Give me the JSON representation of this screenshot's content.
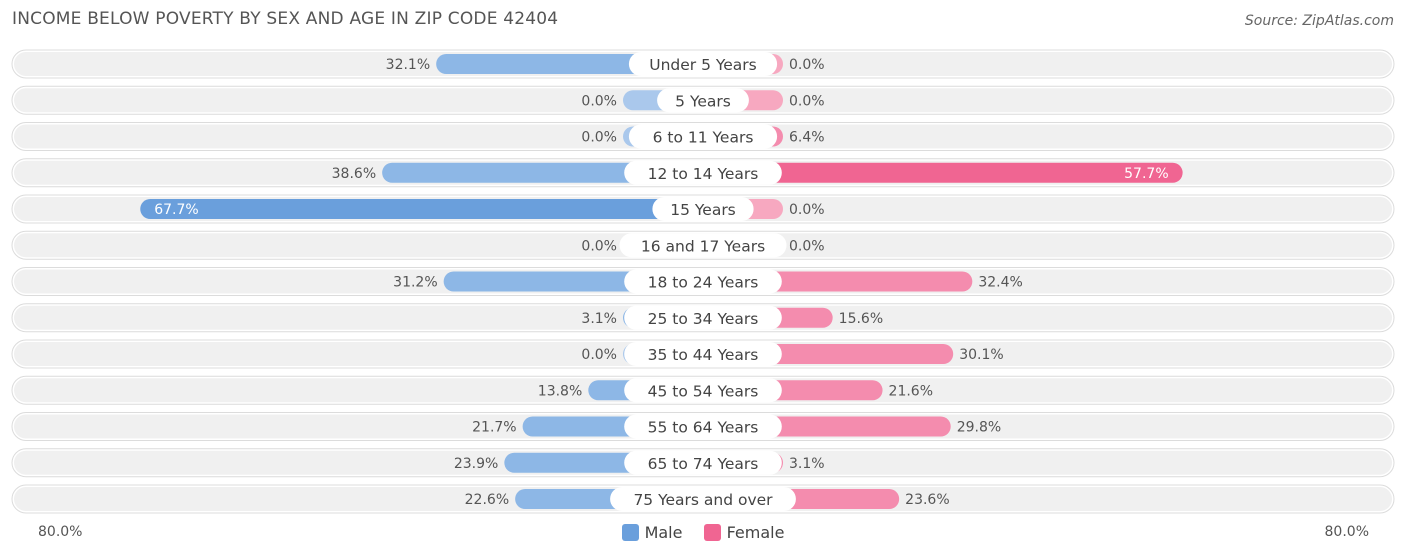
{
  "title": "INCOME BELOW POVERTY BY SEX AND AGE IN ZIP CODE 42404",
  "source": "Source: ZipAtlas.com",
  "axis": {
    "left_label": "80.0%",
    "right_label": "80.0%"
  },
  "legend": {
    "male_label": "Male",
    "female_label": "Female"
  },
  "colors": {
    "male": "#6a9fdc",
    "male_light": "#aac8ec",
    "female": "#f06592",
    "female_light": "#f7a8c0",
    "row_bg": "#f0f0f0"
  },
  "chart_data": {
    "type": "bar",
    "orientation": "horizontal-diverging",
    "categories": [
      "Under 5 Years",
      "5 Years",
      "6 to 11 Years",
      "12 to 14 Years",
      "15 Years",
      "16 and 17 Years",
      "18 to 24 Years",
      "25 to 34 Years",
      "35 to 44 Years",
      "45 to 54 Years",
      "55 to 64 Years",
      "65 to 74 Years",
      "75 Years and over"
    ],
    "series": [
      {
        "name": "Male",
        "values": [
          32.1,
          0.0,
          0.0,
          38.6,
          67.7,
          0.0,
          31.2,
          3.1,
          0.0,
          13.8,
          21.7,
          23.9,
          22.6
        ],
        "labels": [
          "32.1%",
          "0.0%",
          "0.0%",
          "38.6%",
          "67.7%",
          "0.0%",
          "31.2%",
          "3.1%",
          "0.0%",
          "13.8%",
          "21.7%",
          "23.9%",
          "22.6%"
        ]
      },
      {
        "name": "Female",
        "values": [
          0.0,
          0.0,
          6.4,
          57.7,
          0.0,
          0.0,
          32.4,
          15.6,
          30.1,
          21.6,
          29.8,
          3.1,
          23.6
        ],
        "labels": [
          "0.0%",
          "0.0%",
          "6.4%",
          "57.7%",
          "0.0%",
          "0.0%",
          "32.4%",
          "15.6%",
          "30.1%",
          "21.6%",
          "29.8%",
          "3.1%",
          "23.6%"
        ]
      }
    ],
    "xlim": [
      -80,
      80
    ]
  }
}
